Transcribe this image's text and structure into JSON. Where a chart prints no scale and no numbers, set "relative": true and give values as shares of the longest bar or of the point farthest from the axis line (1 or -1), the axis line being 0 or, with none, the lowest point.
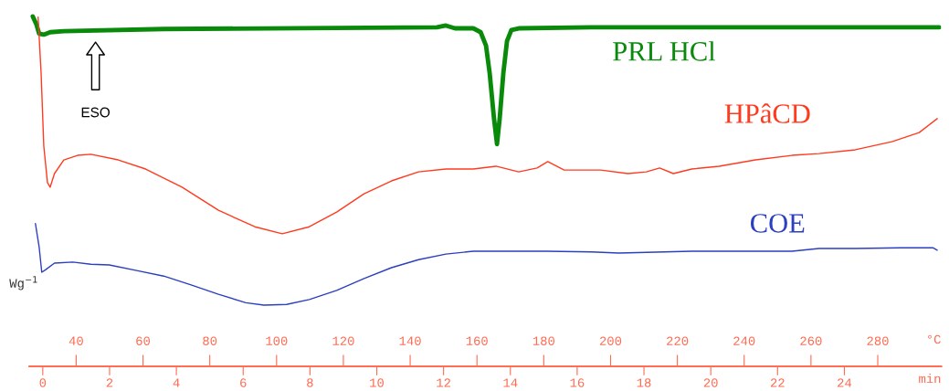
{
  "chart_data": {
    "type": "line",
    "relative": true,
    "xlabel": "min",
    "x2label": "°C",
    "ylabel": "Wg$^{−1}$",
    "xlim": [
      -0.4,
      26.9
    ],
    "xticks": [
      0,
      2,
      4,
      6,
      8,
      10,
      12,
      14,
      16,
      18,
      20,
      22,
      24
    ],
    "x2lim": [
      26,
      299
    ],
    "x2ticks": [
      40,
      60,
      80,
      100,
      120,
      140,
      160,
      180,
      200,
      220,
      240,
      260,
      280
    ],
    "grid": false,
    "legend": false,
    "annotations": [
      "ESO"
    ],
    "series": [
      {
        "name": "PRL HCl",
        "color": "#0a8a0a",
        "x": [
          -0.3,
          -0.19,
          -0.11,
          0.03,
          0.22,
          0.63,
          3.62,
          11.8,
          12.07,
          12.34,
          12.89,
          13.11,
          13.27,
          13.38,
          13.51,
          13.6,
          13.68,
          13.79,
          13.9,
          14.03,
          14.25,
          16.43,
          26.84
        ],
        "values": [
          1,
          0.977,
          0.951,
          0.948,
          0.955,
          0.958,
          0.964,
          0.969,
          0.974,
          0.966,
          0.966,
          0.955,
          0.917,
          0.838,
          0.708,
          0.635,
          0.708,
          0.838,
          0.93,
          0.961,
          0.966,
          0.969,
          0.969
        ]
      },
      {
        "name": "HPâCD",
        "color": "#ff3b1f",
        "x": [
          -0.14,
          -0.05,
          0.03,
          0.14,
          0.22,
          0.35,
          0.63,
          1.04,
          1.44,
          2.26,
          3.08,
          4.17,
          5.26,
          6.35,
          7.17,
          7.98,
          8.8,
          9.62,
          10.44,
          11.25,
          12.07,
          12.89,
          13.57,
          14.25,
          14.8,
          15.12,
          15.61,
          16.7,
          17.52,
          18.07,
          18.47,
          18.88,
          19.43,
          20.25,
          21.34,
          22.43,
          23.24,
          24.33,
          25.42,
          26.24,
          26.78
        ],
        "values": [
          0.998,
          0.838,
          0.63,
          0.525,
          0.512,
          0.551,
          0.59,
          0.603,
          0.606,
          0.59,
          0.564,
          0.512,
          0.446,
          0.399,
          0.379,
          0.399,
          0.441,
          0.493,
          0.53,
          0.556,
          0.564,
          0.564,
          0.572,
          0.556,
          0.567,
          0.585,
          0.561,
          0.561,
          0.551,
          0.556,
          0.567,
          0.551,
          0.564,
          0.572,
          0.59,
          0.603,
          0.608,
          0.619,
          0.642,
          0.668,
          0.708
        ]
      },
      {
        "name": "COE",
        "color": "#2b3fbf",
        "x": [
          -0.22,
          -0.11,
          -0.03,
          0.08,
          0.35,
          0.9,
          1.44,
          1.99,
          2.81,
          3.62,
          4.44,
          5.26,
          6.08,
          6.62,
          7.3,
          7.98,
          8.8,
          9.62,
          10.44,
          11.25,
          12.07,
          12.89,
          15.07,
          16.43,
          17.25,
          19.43,
          22.43,
          23.24,
          24.33,
          25.69,
          26.65,
          26.78
        ],
        "values": [
          0.408,
          0.342,
          0.269,
          0.276,
          0.295,
          0.298,
          0.292,
          0.29,
          0.274,
          0.258,
          0.233,
          0.206,
          0.182,
          0.175,
          0.177,
          0.191,
          0.217,
          0.251,
          0.282,
          0.305,
          0.321,
          0.329,
          0.329,
          0.327,
          0.324,
          0.329,
          0.329,
          0.337,
          0.337,
          0.339,
          0.339,
          0.332
        ]
      }
    ]
  }
}
